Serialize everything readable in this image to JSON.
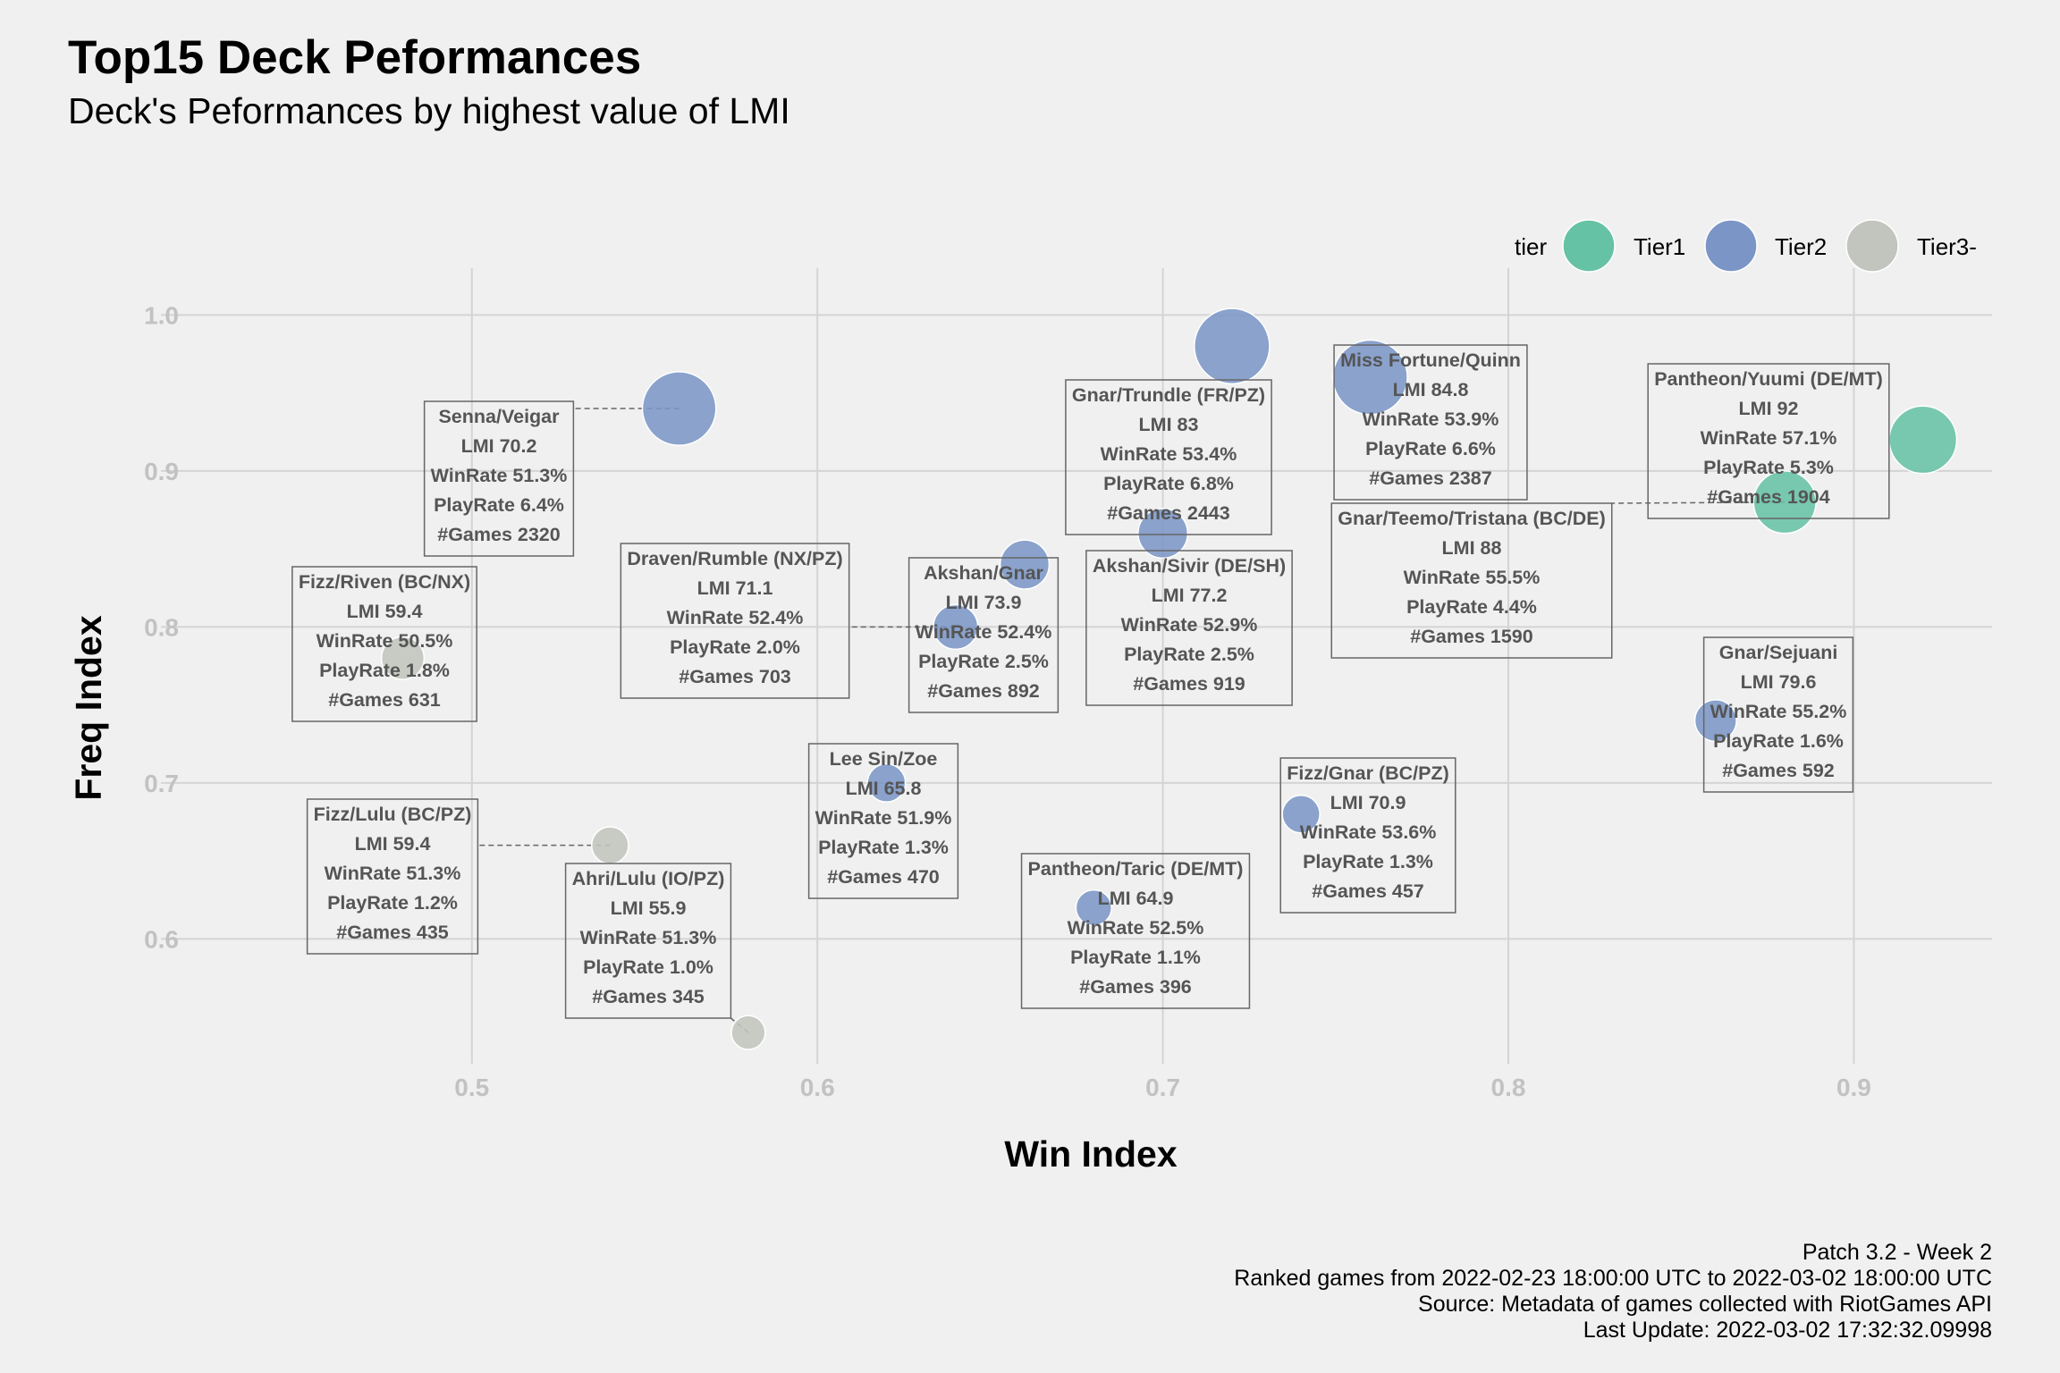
{
  "chart_data": {
    "type": "scatter",
    "title": "Top15 Deck Peformances",
    "subtitle": "Deck's Peformances by highest value of LMI",
    "xlabel": "Win Index",
    "ylabel": "Freq Index",
    "xlim": [
      0.41,
      0.94
    ],
    "ylim": [
      0.52,
      1.03
    ],
    "xticks": [
      "0.5",
      "0.6",
      "0.7",
      "0.8",
      "0.9"
    ],
    "yticks": [
      "0.6",
      "0.7",
      "0.8",
      "0.9",
      "1.0"
    ],
    "grid": true,
    "legend": {
      "title": "tier",
      "position": "top-right",
      "entries": [
        {
          "name": "Tier1",
          "color": "#66c2a5"
        },
        {
          "name": "Tier2",
          "color": "#7b96c6"
        },
        {
          "name": "Tier3-",
          "color": "#c2c5bd"
        }
      ]
    },
    "points": [
      {
        "deck": "Pantheon/Yuumi (DE/MT)",
        "tier": "Tier1",
        "x": 0.92,
        "y": 0.92,
        "lmi": "92",
        "winrate": "57.1%",
        "playrate": "5.3%",
        "games": "1904"
      },
      {
        "deck": "Gnar/Teemo/Tristana (BC/DE)",
        "tier": "Tier1",
        "x": 0.88,
        "y": 0.88,
        "lmi": "88",
        "winrate": "55.5%",
        "playrate": "4.4%",
        "games": "1590"
      },
      {
        "deck": "Miss Fortune/Quinn",
        "tier": "Tier2",
        "x": 0.76,
        "y": 0.96,
        "lmi": "84.8",
        "winrate": "53.9%",
        "playrate": "6.6%",
        "games": "2387"
      },
      {
        "deck": "Gnar/Trundle (FR/PZ)",
        "tier": "Tier2",
        "x": 0.72,
        "y": 0.98,
        "lmi": "83",
        "winrate": "53.4%",
        "playrate": "6.8%",
        "games": "2443"
      },
      {
        "deck": "Gnar/Sejuani",
        "tier": "Tier2",
        "x": 0.86,
        "y": 0.74,
        "lmi": "79.6",
        "winrate": "55.2%",
        "playrate": "1.6%",
        "games": "592"
      },
      {
        "deck": "Akshan/Sivir (DE/SH)",
        "tier": "Tier2",
        "x": 0.7,
        "y": 0.86,
        "lmi": "77.2",
        "winrate": "52.9%",
        "playrate": "2.5%",
        "games": "919"
      },
      {
        "deck": "Akshan/Gnar",
        "tier": "Tier2",
        "x": 0.66,
        "y": 0.84,
        "lmi": "73.9",
        "winrate": "52.4%",
        "playrate": "2.5%",
        "games": "892"
      },
      {
        "deck": "Draven/Rumble (NX/PZ)",
        "tier": "Tier2",
        "x": 0.64,
        "y": 0.8,
        "lmi": "71.1",
        "winrate": "52.4%",
        "playrate": "2.0%",
        "games": "703"
      },
      {
        "deck": "Fizz/Gnar (BC/PZ)",
        "tier": "Tier2",
        "x": 0.74,
        "y": 0.68,
        "lmi": "70.9",
        "winrate": "53.6%",
        "playrate": "1.3%",
        "games": "457"
      },
      {
        "deck": "Senna/Veigar",
        "tier": "Tier2",
        "x": 0.56,
        "y": 0.94,
        "lmi": "70.2",
        "winrate": "51.3%",
        "playrate": "6.4%",
        "games": "2320"
      },
      {
        "deck": "Lee Sin/Zoe",
        "tier": "Tier2",
        "x": 0.62,
        "y": 0.7,
        "lmi": "65.8",
        "winrate": "51.9%",
        "playrate": "1.3%",
        "games": "470"
      },
      {
        "deck": "Pantheon/Taric (DE/MT)",
        "tier": "Tier2",
        "x": 0.68,
        "y": 0.62,
        "lmi": "64.9",
        "winrate": "52.5%",
        "playrate": "1.1%",
        "games": "396"
      },
      {
        "deck": "Fizz/Riven (BC/NX)",
        "tier": "Tier3-",
        "x": 0.48,
        "y": 0.78,
        "lmi": "59.4",
        "winrate": "50.5%",
        "playrate": "1.8%",
        "games": "631"
      },
      {
        "deck": "Fizz/Lulu (BC/PZ)",
        "tier": "Tier3-",
        "x": 0.54,
        "y": 0.66,
        "lmi": "59.4",
        "winrate": "51.3%",
        "playrate": "1.2%",
        "games": "435"
      },
      {
        "deck": "Ahri/Lulu (IO/PZ)",
        "tier": "Tier3-",
        "x": 0.58,
        "y": 0.54,
        "lmi": "55.9",
        "winrate": "51.3%",
        "playrate": "1.0%",
        "games": "345"
      }
    ],
    "caption": [
      "Patch 3.2 - Week 2",
      "Ranked games from 2022-02-23 18:00:00 UTC to 2022-03-02 18:00:00 UTC",
      "Source: Metadata of games collected with RiotGames API",
      "Last Update: 2022-03-02 17:32:32.09998"
    ]
  }
}
